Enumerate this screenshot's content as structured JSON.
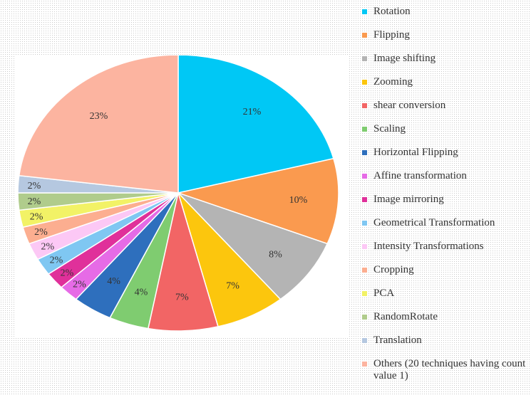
{
  "chart_data": {
    "type": "pie",
    "title": "",
    "legend_position": "right",
    "slices": [
      {
        "label": "Rotation",
        "value": 21,
        "display": "21%",
        "color": "#00c8f5"
      },
      {
        "label": "Flipping",
        "value": 10,
        "display": "10%",
        "color": "#fa9a4f"
      },
      {
        "label": "Image shifting",
        "value": 8,
        "display": "8%",
        "color": "#b4b4b4"
      },
      {
        "label": "Zooming",
        "value": 7,
        "display": "7%",
        "color": "#fcc60d"
      },
      {
        "label": "shear conversion",
        "value": 7,
        "display": "7%",
        "color": "#f26565"
      },
      {
        "label": "Scaling",
        "value": 4,
        "display": "4%",
        "color": "#7fcc70"
      },
      {
        "label": "Horizontal Flipping",
        "value": 4,
        "display": "4%",
        "color": "#2e6fbd"
      },
      {
        "label": "Affine transformation",
        "value": 2,
        "display": "2%",
        "color": "#e66be6"
      },
      {
        "label": "Image mirroring",
        "value": 2,
        "display": "2%",
        "color": "#e0309a"
      },
      {
        "label": "Geometrical Transformation",
        "value": 2,
        "display": "2%",
        "color": "#7fc7f2"
      },
      {
        "label": "Intensity Transformations",
        "value": 2,
        "display": "2%",
        "color": "#fcc8f5"
      },
      {
        "label": "Cropping",
        "value": 2,
        "display": "2%",
        "color": "#fcae90"
      },
      {
        "label": "PCA",
        "value": 2,
        "display": "2%",
        "color": "#f2f266"
      },
      {
        "label": "RandomRotate",
        "value": 2,
        "display": "2%",
        "color": "#b0cc8c"
      },
      {
        "label": "Translation",
        "value": 2,
        "display": "2%",
        "color": "#b5c8e0"
      },
      {
        "label": "Others (20 techniques having count value 1)",
        "value": 23,
        "display": "23%",
        "color": "#fcb4a0"
      }
    ]
  }
}
